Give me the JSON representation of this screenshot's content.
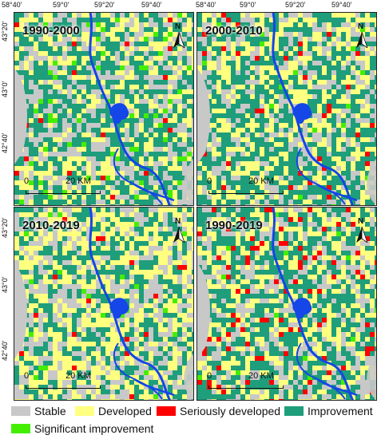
{
  "axes": {
    "top_ticks": [
      "58°40'",
      "59°0'",
      "59°20'",
      "59°40'",
      "58°40'",
      "59°0'",
      "59°20'",
      "59°40'"
    ],
    "left_ticks": [
      "43°20'",
      "43°0'",
      "42°40'",
      "43°20'",
      "43°0'",
      "42°40'"
    ]
  },
  "panels": [
    {
      "label": "1990-2000",
      "north": "N",
      "scale_start": "0",
      "scale_end": "20 KM"
    },
    {
      "label": "2000-2010",
      "north": "N",
      "scale_start": "0",
      "scale_end": "20 KM"
    },
    {
      "label": "2010-2019",
      "north": "N",
      "scale_start": "0",
      "scale_end": "20 KM"
    },
    {
      "label": "1990-2019",
      "north": "N",
      "scale_start": "0",
      "scale_end": "20 KM"
    }
  ],
  "legend": [
    {
      "label": "Stable",
      "color": "#c8c8c8"
    },
    {
      "label": "Developed",
      "color": "#ffff80"
    },
    {
      "label": "Seriously developed",
      "color": "#ff0000"
    },
    {
      "label": "Improvement",
      "color": "#1e9e7a"
    },
    {
      "label": "Significant improvement",
      "color": "#44ee00"
    }
  ],
  "colors": {
    "river": "#1446e8",
    "stable": "#c8c8c8",
    "developed": "#ffff80",
    "seriously_developed": "#ff0000",
    "improvement": "#1e9e7a",
    "significant_improvement": "#44ee00"
  }
}
